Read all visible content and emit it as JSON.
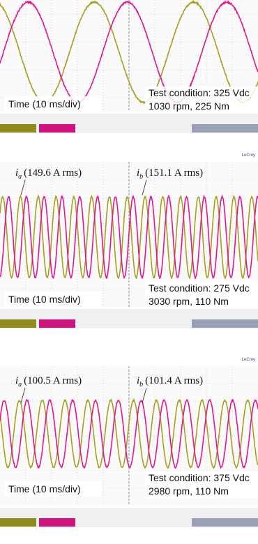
{
  "panels": [
    {
      "labels": [],
      "condition": "Test condition: 325 Vdc",
      "operating_point": "1030 rpm, 225 Nm",
      "time_scale": "Time (10 ms/div)"
    },
    {
      "brand": "LeCroy",
      "labels": [
        {
          "symbol": "i",
          "sub": "a",
          "text": "(149.6 A rms)"
        },
        {
          "symbol": "i",
          "sub": "b",
          "text": "(151.1 A rms)"
        }
      ],
      "condition": "Test condition: 275 Vdc",
      "operating_point": "3030 rpm, 110 Nm",
      "time_scale": "Time (10 ms/div)"
    },
    {
      "brand": "LeCroy",
      "labels": [
        {
          "symbol": "i",
          "sub": "a",
          "text": "(100.5 A rms)"
        },
        {
          "symbol": "i",
          "sub": "b",
          "text": "(101.4 A rms)"
        }
      ],
      "condition": "Test condition: 375 Vdc",
      "operating_point": "2980 rpm, 110 Nm",
      "time_scale": "Time (10 ms/div)"
    }
  ]
}
